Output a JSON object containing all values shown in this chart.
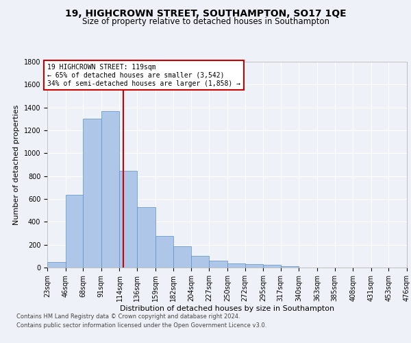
{
  "title": "19, HIGHCROWN STREET, SOUTHAMPTON, SO17 1QE",
  "subtitle": "Size of property relative to detached houses in Southampton",
  "xlabel": "Distribution of detached houses by size in Southampton",
  "ylabel": "Number of detached properties",
  "bar_values": [
    50,
    635,
    1305,
    1370,
    845,
    530,
    275,
    185,
    105,
    62,
    37,
    30,
    22,
    14,
    3,
    0,
    0,
    0,
    0,
    0
  ],
  "bin_edges": [
    23,
    46,
    68,
    91,
    114,
    136,
    159,
    182,
    204,
    227,
    250,
    272,
    295,
    317,
    340,
    363,
    385,
    408,
    431,
    453,
    476
  ],
  "bin_labels": [
    "23sqm",
    "46sqm",
    "68sqm",
    "91sqm",
    "114sqm",
    "136sqm",
    "159sqm",
    "182sqm",
    "204sqm",
    "227sqm",
    "250sqm",
    "272sqm",
    "295sqm",
    "317sqm",
    "340sqm",
    "363sqm",
    "385sqm",
    "408sqm",
    "431sqm",
    "453sqm",
    "476sqm"
  ],
  "bar_color": "#aec6e8",
  "bar_edge_color": "#5a8fc2",
  "vline_x": 119,
  "vline_color": "#cc0000",
  "annotation_box_text": "19 HIGHCROWN STREET: 119sqm\n← 65% of detached houses are smaller (3,542)\n34% of semi-detached houses are larger (1,858) →",
  "annotation_box_color": "#cc0000",
  "ylim": [
    0,
    1800
  ],
  "yticks": [
    0,
    200,
    400,
    600,
    800,
    1000,
    1200,
    1400,
    1600,
    1800
  ],
  "bg_color": "#eef2f8",
  "plot_bg_color": "#eef2f8",
  "grid_color": "#ffffff",
  "footer_line1": "Contains HM Land Registry data © Crown copyright and database right 2024.",
  "footer_line2": "Contains public sector information licensed under the Open Government Licence v3.0.",
  "title_fontsize": 10,
  "subtitle_fontsize": 8.5,
  "xlabel_fontsize": 8,
  "ylabel_fontsize": 8,
  "tick_fontsize": 7
}
